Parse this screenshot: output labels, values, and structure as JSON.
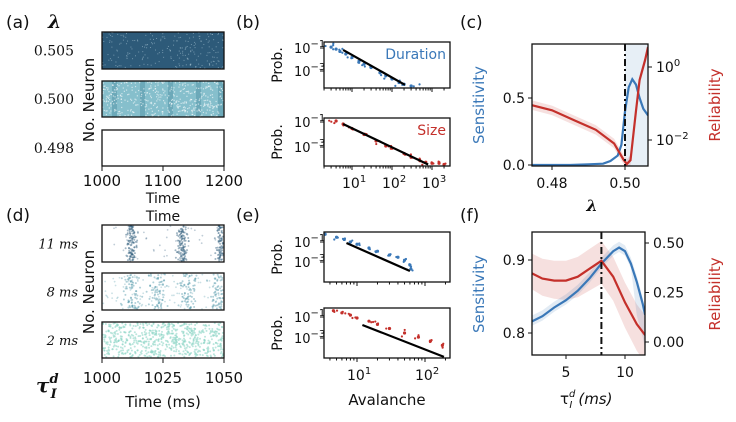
{
  "colors": {
    "blue": "#3a78b8",
    "red": "#c4302b",
    "fit": "#000000",
    "raster_dark": "#2d5a79",
    "raster_mid": "#4f97a8",
    "raster_light": "#86bfcc",
    "raster_pale": "#8ed6c6"
  },
  "chart_data": [
    {
      "panel": "(a)",
      "type": "raster",
      "row_header": "λ",
      "ylabel": "No. Neuron",
      "xlabel": "Time",
      "xlim": [
        1000,
        1200
      ],
      "xticks": [
        "1000",
        "1100",
        "1200"
      ],
      "rows": [
        {
          "label": "0.505",
          "activity": "dense, saturated"
        },
        {
          "label": "0.500",
          "activity": "intermediate, banded"
        },
        {
          "label": "0.498",
          "activity": "silent"
        }
      ]
    },
    {
      "panel": "(b)",
      "type": "scatter",
      "xscale": "log",
      "yscale": "log",
      "ylabel": "Prob.",
      "xticks": [
        {
          "base": "10",
          "exp": "1",
          "value": 10
        },
        {
          "base": "10",
          "exp": "2",
          "value": 100
        },
        {
          "base": "10",
          "exp": "3",
          "value": 1000
        }
      ],
      "yticks": [
        {
          "base": "10",
          "exp": "−1",
          "value": 0.1
        },
        {
          "base": "10",
          "exp": "−3",
          "value": 0.001
        }
      ],
      "series": [
        {
          "name": "Duration",
          "color": "#3a78b8",
          "points": [
            [
              2,
              0.25
            ],
            [
              3,
              0.12
            ],
            [
              4,
              0.08
            ],
            [
              5,
              0.05
            ],
            [
              7,
              0.03
            ],
            [
              10,
              0.015
            ],
            [
              15,
              0.007
            ],
            [
              20,
              0.004
            ],
            [
              30,
              0.002
            ],
            [
              50,
              0.0007
            ],
            [
              70,
              0.0004
            ],
            [
              100,
              0.0002
            ],
            [
              150,
              0.0001
            ],
            [
              200,
              7e-05
            ],
            [
              300,
              5e-05
            ],
            [
              400,
              4e-05
            ],
            [
              600,
              3e-05
            ],
            [
              900,
              3e-05
            ]
          ],
          "fit": [
            [
              6,
              0.068
            ],
            [
              210,
              6.3e-05
            ]
          ]
        },
        {
          "name": "Size",
          "color": "#c4302b",
          "points": [
            [
              3,
              0.2
            ],
            [
              4,
              0.12
            ],
            [
              6,
              0.07
            ],
            [
              10,
              0.03
            ],
            [
              20,
              0.01
            ],
            [
              40,
              0.003
            ],
            [
              70,
              0.0012
            ],
            [
              100,
              0.0008
            ],
            [
              200,
              0.0003
            ],
            [
              300,
              0.00015
            ],
            [
              500,
              8e-05
            ],
            [
              700,
              6e-05
            ],
            [
              1000,
              5e-05
            ],
            [
              1500,
              5e-05
            ],
            [
              2000,
              4e-05
            ],
            [
              3000,
              4e-05
            ]
          ],
          "fit": [
            [
              6,
              0.069
            ],
            [
              800,
              4e-05
            ]
          ]
        }
      ]
    },
    {
      "panel": "(c)",
      "type": "line",
      "xlabel": "λ",
      "ylabel_left": "Sensitivity",
      "ylabel_right": "Reliability",
      "yscale_right": "log",
      "xlim": [
        0.4745,
        0.5063
      ],
      "ylim_left": [
        0,
        0.9
      ],
      "xticks": [
        "0.48",
        "0.50"
      ],
      "xtick_values": [
        0.48,
        0.5
      ],
      "yticks_left": [
        "0.0",
        "0.5"
      ],
      "ytick_left_values": [
        0,
        0.5
      ],
      "yticks_right": [
        {
          "base": "10",
          "exp": "0",
          "value": 1
        },
        {
          "base": "10",
          "exp": "−2",
          "value": 0.01
        }
      ],
      "vline": 0.5,
      "sensitivity": {
        "x": [
          0.4745,
          0.48,
          0.485,
          0.49,
          0.494,
          0.496,
          0.498,
          0.499,
          0.5,
          0.501,
          0.502,
          0.503,
          0.504,
          0.505,
          0.5063
        ],
        "y": [
          0,
          0,
          0,
          0.005,
          0.01,
          0.03,
          0.07,
          0.15,
          0.4,
          0.58,
          0.64,
          0.6,
          0.5,
          0.42,
          0.37
        ]
      },
      "reliability": {
        "x": [
          0.4745,
          0.48,
          0.486,
          0.492,
          0.497,
          0.4995,
          0.5005,
          0.5015,
          0.503,
          0.504,
          0.5055,
          0.5063
        ],
        "y": [
          0.09,
          0.065,
          0.035,
          0.019,
          0.008,
          0.003,
          0.0022,
          0.0028,
          0.063,
          0.44,
          1.55,
          3.5
        ]
      }
    },
    {
      "panel": "(d)",
      "type": "raster",
      "row_header": "τ",
      "row_header_sup": "d",
      "row_header_sub": "I",
      "ylabel": "No. Neuron",
      "xlabel": "Time (ms)",
      "top_label": "Time",
      "xlim": [
        1000,
        1050
      ],
      "xticks": [
        "1000",
        "1025",
        "1050"
      ],
      "rows": [
        {
          "label": "11 ms",
          "burst_times": [
            1012,
            1033,
            1049
          ]
        },
        {
          "label": "8 ms",
          "burst_times": [
            1012,
            1023,
            1035,
            1048
          ]
        },
        {
          "label": "2 ms",
          "burst_times": []
        }
      ]
    },
    {
      "panel": "(e)",
      "type": "scatter",
      "xscale": "log",
      "yscale": "log",
      "ylabel": "Prob.",
      "xlabel": "Avalanche",
      "xticks": [
        {
          "base": "10",
          "exp": "1",
          "value": 10
        },
        {
          "base": "10",
          "exp": "2",
          "value": 100
        }
      ],
      "yticks": [
        {
          "base": "10",
          "exp": "−1",
          "value": 0.1
        },
        {
          "base": "10",
          "exp": "−3",
          "value": 0.001
        }
      ],
      "series": [
        {
          "color": "#3a78b8",
          "points": [
            [
              3.4,
              0.6
            ],
            [
              5,
              0.3
            ],
            [
              6.5,
              0.18
            ],
            [
              8,
              0.1
            ],
            [
              10,
              0.06
            ],
            [
              15,
              0.025
            ],
            [
              20,
              0.012
            ],
            [
              30,
              0.005
            ],
            [
              40,
              0.003
            ],
            [
              50,
              0.0015
            ],
            [
              60,
              0.0005
            ],
            [
              62,
              0.0002
            ]
          ],
          "fit": [
            [
              7,
              0.079
            ],
            [
              60,
              0.000126
            ]
          ]
        },
        {
          "color": "#c4302b",
          "points": [
            [
              3.4,
              0.7
            ],
            [
              4.5,
              0.4
            ],
            [
              6,
              0.25
            ],
            [
              8,
              0.15
            ],
            [
              10,
              0.08
            ],
            [
              15,
              0.04
            ],
            [
              20,
              0.02
            ],
            [
              30,
              0.008
            ],
            [
              50,
              0.003
            ],
            [
              80,
              0.0012
            ],
            [
              120,
              0.0005
            ],
            [
              180,
              0.0002
            ],
            [
              250,
              2e-05
            ]
          ],
          "fit": [
            [
              12,
              0.0174
            ],
            [
              190,
              1.6e-05
            ]
          ]
        }
      ]
    },
    {
      "panel": "(f)",
      "type": "line",
      "xlabel": "τ",
      "xlabel_sup": "d",
      "xlabel_sub": "I",
      "xlabel_unit": "(ms)",
      "ylabel_left": "Sensitivity",
      "ylabel_right": "Reliability",
      "xlim": [
        2.1,
        11.7
      ],
      "ylim_left": [
        0.77,
        0.94
      ],
      "ylim_right": [
        -0.05,
        0.57
      ],
      "xticks": [
        "5",
        "10"
      ],
      "xtick_values": [
        5,
        10
      ],
      "yticks_left": [
        "0.8",
        "0.9"
      ],
      "ytick_left_values": [
        0.8,
        0.9
      ],
      "yticks_right": [
        "0.00",
        "0.25",
        "0.50"
      ],
      "ytick_right_values": [
        0,
        0.25,
        0.5
      ],
      "vline": 8,
      "sensitivity": {
        "x": [
          2,
          3,
          4,
          5,
          6,
          7,
          8,
          9,
          9.5,
          10,
          10.5,
          11,
          11.5,
          11.7
        ],
        "y": [
          0.815,
          0.823,
          0.835,
          0.845,
          0.858,
          0.875,
          0.895,
          0.912,
          0.917,
          0.912,
          0.895,
          0.87,
          0.84,
          0.825
        ]
      },
      "reliability": {
        "x": [
          2,
          3,
          4,
          5,
          6,
          7,
          8,
          9,
          10,
          11,
          11.7
        ],
        "y": [
          0.35,
          0.32,
          0.31,
          0.31,
          0.33,
          0.37,
          0.41,
          0.33,
          0.2,
          0.09,
          0.035
        ]
      }
    }
  ]
}
